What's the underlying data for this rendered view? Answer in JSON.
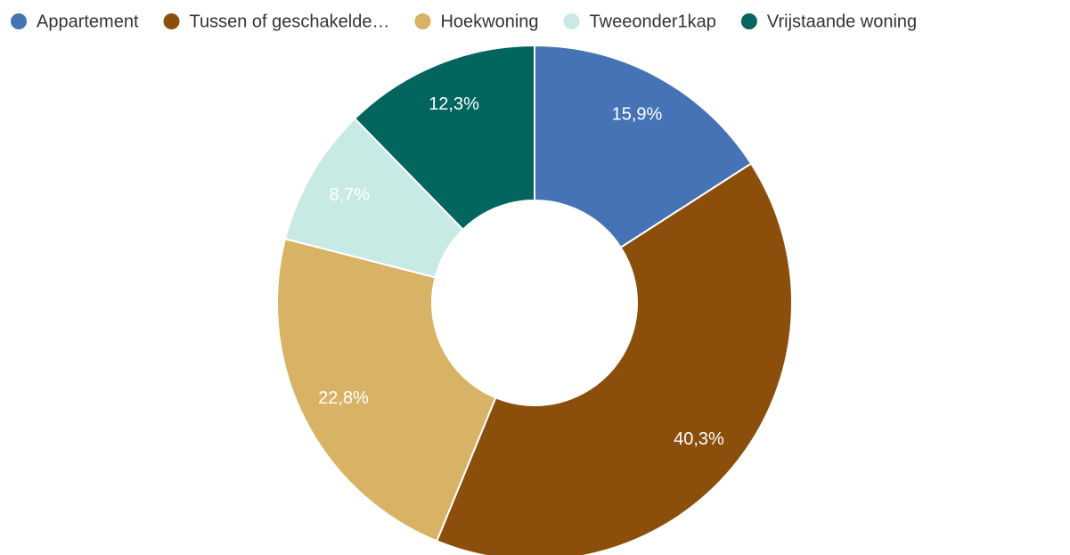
{
  "chart_data": {
    "type": "pie",
    "categories": [
      "Appartement",
      "Tussen of geschakelde…",
      "Hoekwoning",
      "Tweeonder1kap",
      "Vrijstaande woning"
    ],
    "values": [
      15.9,
      40.3,
      22.8,
      8.7,
      12.3
    ],
    "value_labels": [
      "15,9%",
      "40,3%",
      "22,8%",
      "8,7%",
      "12,3%"
    ],
    "colors": [
      "#4673b5",
      "#8b4f0b",
      "#d8b265",
      "#c8eae4",
      "#02665e"
    ],
    "legend": "top"
  }
}
